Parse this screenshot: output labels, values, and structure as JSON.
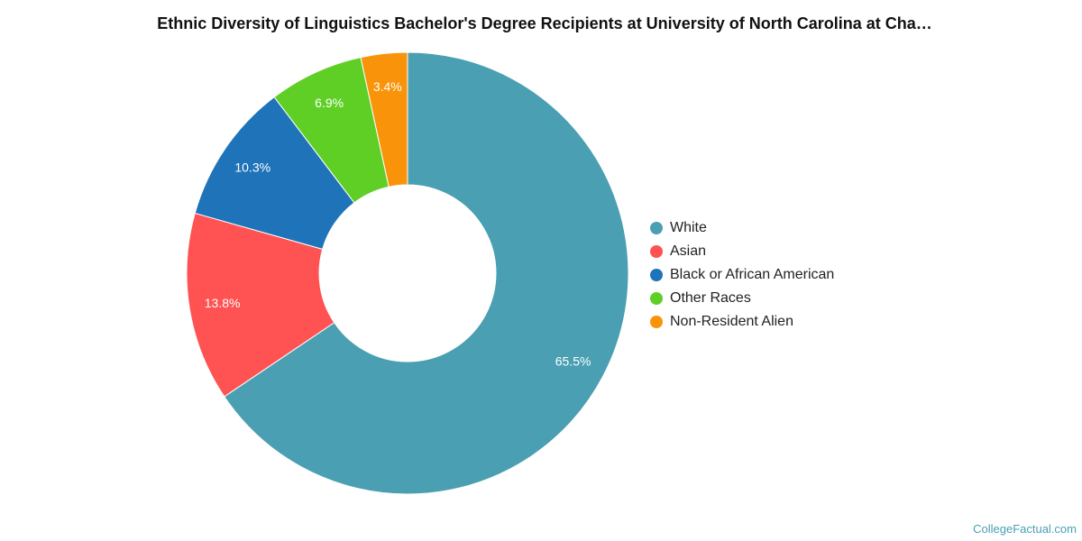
{
  "chart_data": {
    "type": "pie",
    "title": "Ethnic Diversity of Linguistics Bachelor's Degree Recipients at University of North Carolina at Cha…",
    "donut": true,
    "legend_position": "right",
    "slices": [
      {
        "label": "White",
        "value": 65.5,
        "display": "65.5%",
        "color": "#4a9fb2"
      },
      {
        "label": "Asian",
        "value": 13.8,
        "display": "13.8%",
        "color": "#fe5352"
      },
      {
        "label": "Black or African American",
        "value": 10.3,
        "display": "10.3%",
        "color": "#1f73b9"
      },
      {
        "label": "Other Races",
        "value": 6.9,
        "display": "6.9%",
        "color": "#5fcf26"
      },
      {
        "label": "Non-Resident Alien",
        "value": 3.4,
        "display": "3.4%",
        "color": "#f9940a"
      }
    ]
  },
  "watermark": "CollegeFactual.com"
}
